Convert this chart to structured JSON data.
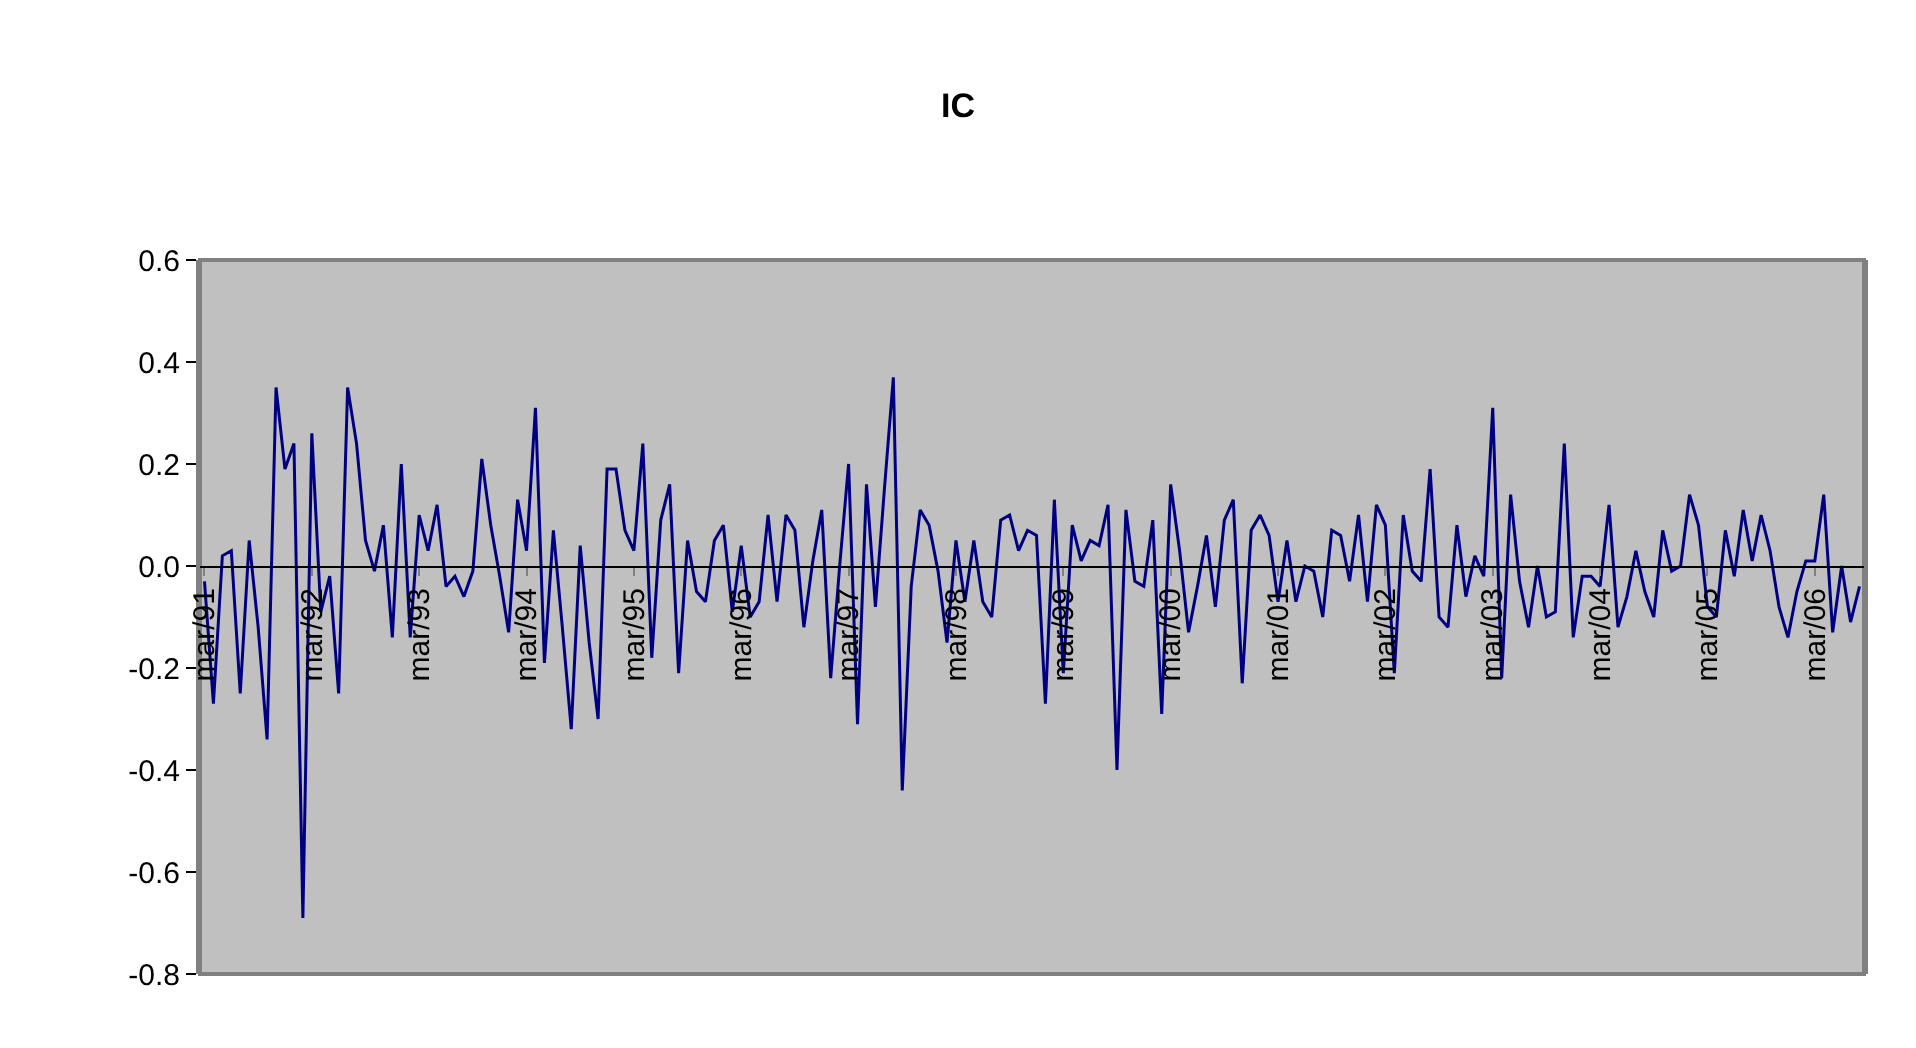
{
  "chart_data": {
    "type": "line",
    "title": "IC",
    "categories": [
      "mar/91",
      null,
      null,
      null,
      null,
      null,
      null,
      null,
      null,
      null,
      null,
      null,
      "mar/92",
      null,
      null,
      null,
      null,
      null,
      null,
      null,
      null,
      null,
      null,
      null,
      "mar/93",
      null,
      null,
      null,
      null,
      null,
      null,
      null,
      null,
      null,
      null,
      null,
      "mar/94",
      null,
      null,
      null,
      null,
      null,
      null,
      null,
      null,
      null,
      null,
      null,
      "mar/95",
      null,
      null,
      null,
      null,
      null,
      null,
      null,
      null,
      null,
      null,
      null,
      "mar/96",
      null,
      null,
      null,
      null,
      null,
      null,
      null,
      null,
      null,
      null,
      null,
      "mar/97",
      null,
      null,
      null,
      null,
      null,
      null,
      null,
      null,
      null,
      null,
      null,
      "mar/98",
      null,
      null,
      null,
      null,
      null,
      null,
      null,
      null,
      null,
      null,
      null,
      "mar/99",
      null,
      null,
      null,
      null,
      null,
      null,
      null,
      null,
      null,
      null,
      null,
      "mar/00",
      null,
      null,
      null,
      null,
      null,
      null,
      null,
      null,
      null,
      null,
      null,
      "mar/01",
      null,
      null,
      null,
      null,
      null,
      null,
      null,
      null,
      null,
      null,
      null,
      "mar/02",
      null,
      null,
      null,
      null,
      null,
      null,
      null,
      null,
      null,
      null,
      null,
      "mar/03",
      null,
      null,
      null,
      null,
      null,
      null,
      null,
      null,
      null,
      null,
      null,
      "mar/04",
      null,
      null,
      null,
      null,
      null,
      null,
      null,
      null,
      null,
      null,
      null,
      "mar/05",
      null,
      null,
      null,
      null,
      null,
      null,
      null,
      null,
      null,
      null,
      null,
      "mar/06",
      null,
      null,
      null,
      null,
      null
    ],
    "series": [
      {
        "color": "#000080",
        "values": [
          -0.03,
          -0.27,
          0.02,
          0.03,
          -0.25,
          0.05,
          -0.12,
          -0.34,
          0.35,
          0.19,
          0.24,
          -0.69,
          0.26,
          -0.09,
          -0.02,
          -0.25,
          0.35,
          0.24,
          0.05,
          -0.01,
          0.08,
          -0.14,
          0.2,
          -0.14,
          0.1,
          0.03,
          0.12,
          -0.04,
          -0.02,
          -0.06,
          -0.01,
          0.21,
          0.08,
          -0.02,
          -0.13,
          0.13,
          0.03,
          0.31,
          -0.19,
          0.07,
          -0.12,
          -0.32,
          0.04,
          -0.15,
          -0.3,
          0.19,
          0.19,
          0.07,
          0.03,
          0.24,
          -0.18,
          0.09,
          0.16,
          -0.21,
          0.05,
          -0.05,
          -0.07,
          0.05,
          0.08,
          -0.09,
          0.04,
          -0.1,
          -0.07,
          0.1,
          -0.07,
          0.1,
          0.07,
          -0.12,
          0.01,
          0.11,
          -0.22,
          0.0,
          0.2,
          -0.31,
          0.16,
          -0.08,
          0.15,
          0.37,
          -0.44,
          -0.04,
          0.11,
          0.08,
          -0.01,
          -0.15,
          0.05,
          -0.07,
          0.05,
          -0.07,
          -0.1,
          0.09,
          0.1,
          0.03,
          0.07,
          0.06,
          -0.27,
          0.13,
          -0.21,
          0.08,
          0.01,
          0.05,
          0.04,
          0.12,
          -0.4,
          0.11,
          -0.03,
          -0.04,
          0.09,
          -0.29,
          0.16,
          0.03,
          -0.13,
          -0.04,
          0.06,
          -0.08,
          0.09,
          0.13,
          -0.23,
          0.07,
          0.1,
          0.06,
          -0.07,
          0.05,
          -0.07,
          0.0,
          -0.01,
          -0.1,
          0.07,
          0.06,
          -0.03,
          0.1,
          -0.07,
          0.12,
          0.08,
          -0.21,
          0.1,
          -0.01,
          -0.03,
          0.19,
          -0.1,
          -0.12,
          0.08,
          -0.06,
          0.02,
          -0.02,
          0.31,
          -0.22,
          0.14,
          -0.03,
          -0.12,
          0.0,
          -0.1,
          -0.09,
          0.24,
          -0.14,
          -0.02,
          -0.02,
          -0.04,
          0.12,
          -0.12,
          -0.06,
          0.03,
          -0.05,
          -0.1,
          0.07,
          -0.01,
          0.0,
          0.14,
          0.08,
          -0.08,
          -0.1,
          0.07,
          -0.02,
          0.11,
          0.01,
          0.1,
          0.03,
          -0.08,
          -0.14,
          -0.05,
          0.01,
          0.01,
          0.14,
          -0.13,
          0.0,
          -0.11,
          -0.04
        ]
      }
    ],
    "ylim": [
      -0.8,
      0.6
    ],
    "yticks": [
      -0.8,
      -0.6,
      -0.4,
      -0.2,
      {
        "value": 0,
        "label": "0.0"
      },
      0.2,
      0.4,
      0.6
    ],
    "grid": false,
    "marker": "none",
    "line_style": "solid"
  }
}
